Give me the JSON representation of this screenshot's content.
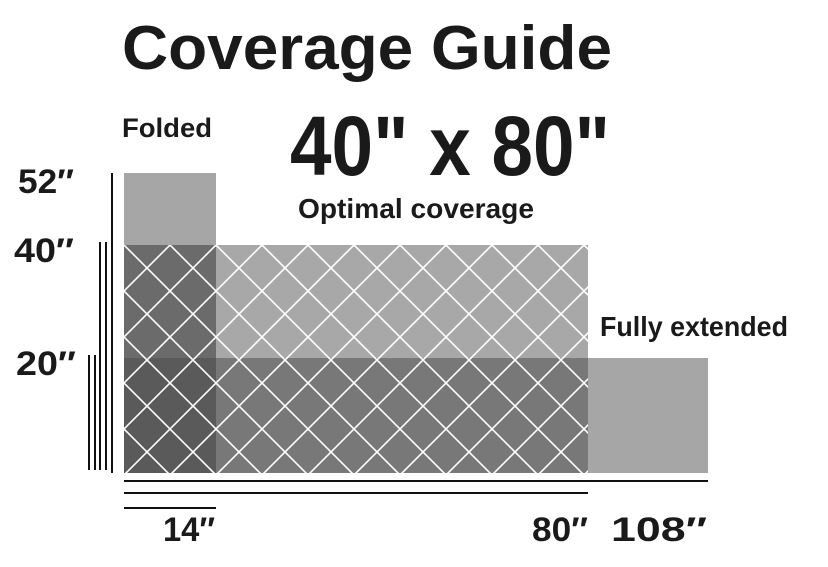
{
  "title": "Coverage Guide",
  "labels": {
    "folded": "Folded",
    "size": "40\" x 80\"",
    "optimal": "Optimal coverage",
    "extended": "Fully extended"
  },
  "heights": [
    "52″",
    "40″",
    "20″"
  ],
  "widths": [
    "14″",
    "80″",
    "108″"
  ]
}
